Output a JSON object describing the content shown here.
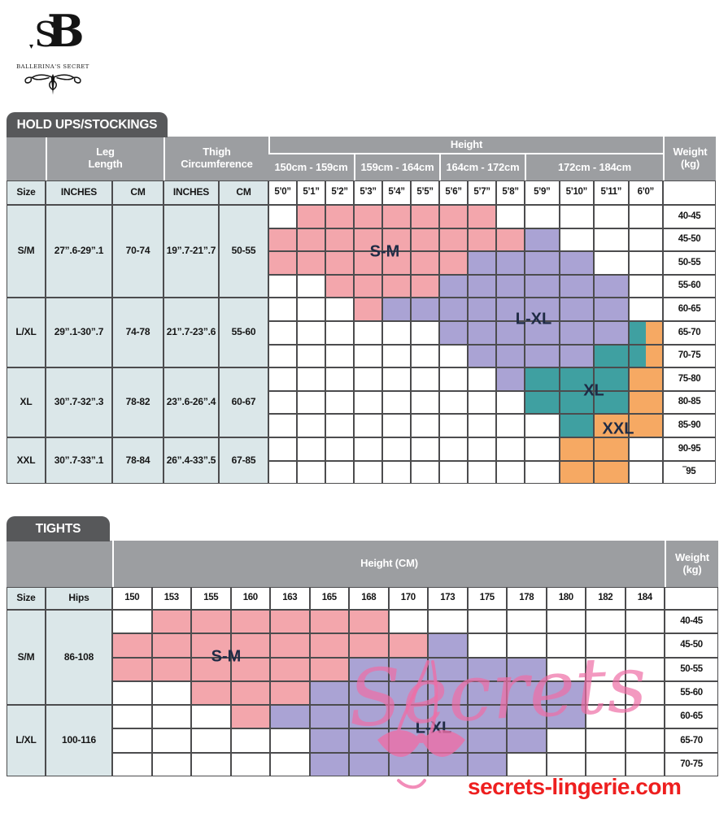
{
  "logo": {
    "monogram_primary": "B",
    "monogram_secondary": "S",
    "brand": "BALLERINA'S SECRET"
  },
  "chart_data": [
    {
      "type": "heatmap",
      "title": "HOLD UPS/STOCKINGS",
      "size_col_header": "Size",
      "measure_headers": [
        {
          "label": "Leg\nLength",
          "subcols": [
            "INCHES",
            "CM"
          ]
        },
        {
          "label": "Thigh\nCircumference",
          "subcols": [
            "INCHES",
            "CM"
          ]
        }
      ],
      "height_header": "Height",
      "weight_header": "Weight\n(kg)",
      "height_ranges": [
        {
          "label": "150cm - 159cm",
          "span": 3
        },
        {
          "label": "159cm - 164cm",
          "span": 3
        },
        {
          "label": "164cm - 172cm",
          "span": 3
        },
        {
          "label": "172cm - 184cm",
          "span": 4
        }
      ],
      "height_ticks": [
        "5’0”",
        "5’1”",
        "5’2”",
        "5’3”",
        "5’4”",
        "5’5”",
        "5’6”",
        "5’7”",
        "5’8”",
        "5’9”",
        "5’10”",
        "5’11”",
        "6’0”"
      ],
      "sizes": [
        {
          "size": "S/M",
          "leg_inches": "27”.6-29”.1",
          "leg_cm": "70-74",
          "thigh_inches": "19”.7-21”.7",
          "thigh_cm": "50-55",
          "weight_rows": 4
        },
        {
          "size": "L/XL",
          "leg_inches": "29”.1-30”.7",
          "leg_cm": "74-78",
          "thigh_inches": "21”.7-23”.6",
          "thigh_cm": "55-60",
          "weight_rows": 3
        },
        {
          "size": "XL",
          "leg_inches": "30”.7-32”.3",
          "leg_cm": "78-82",
          "thigh_inches": "23”.6-26”.4",
          "thigh_cm": "60-67",
          "weight_rows": 3
        },
        {
          "size": "XXL",
          "leg_inches": "30”.7-33”.1",
          "leg_cm": "78-84",
          "thigh_inches": "26”.4-33”.5",
          "thigh_cm": "67-85",
          "weight_rows": 2
        }
      ],
      "weights": [
        "40-45",
        "45-50",
        "50-55",
        "55-60",
        "60-65",
        "65-70",
        "70-75",
        "75-80",
        "80-85",
        "85-90",
        "90-95",
        "‾95"
      ],
      "grid": [
        ".PPPPPPP.....",
        "PPPPPPPPPL...",
        "PPPPPPPLLLL..",
        "..PPPPLLLLLL.",
        "...PLLLLLLLL.",
        "......LLLLLLX",
        ".......LLLLTX",
        "........LTTTO",
        ".........TTTO",
        "..........TOO",
        "..........OO.",
        "..........OO."
      ],
      "legend": {
        "P": "S-M",
        "L": "L-XL",
        "T": "XL",
        "O": "XXL",
        "X": "XL/XXL",
        ".": "n/a"
      },
      "region_labels": [
        {
          "text": "S-M"
        },
        {
          "text": "L-XL"
        },
        {
          "text": "XL"
        },
        {
          "text": "XXL"
        }
      ]
    },
    {
      "type": "heatmap",
      "title": "TIGHTS",
      "size_col_header": "Size",
      "hips_header": "Hips",
      "height_header": "Height (CM)",
      "weight_header": "Weight\n(kg)",
      "height_ticks": [
        "150",
        "153",
        "155",
        "160",
        "163",
        "165",
        "168",
        "170",
        "173",
        "175",
        "178",
        "180",
        "182",
        "184"
      ],
      "sizes": [
        {
          "size": "S/M",
          "hips": "86-108",
          "weight_rows": 4
        },
        {
          "size": "L/XL",
          "hips": "100-116",
          "weight_rows": 3
        }
      ],
      "weights": [
        "40-45",
        "45-50",
        "50-55",
        "55-60",
        "60-65",
        "65-70",
        "70-75"
      ],
      "grid": [
        ".PPPPPP.......",
        "PPPPPPPPL.....",
        "PPPPPPLLLLL...",
        "..PPPLLLLLLL..",
        "...PLLLLLLLL..",
        ".....LLLLLL...",
        ".....LLLLL...."
      ],
      "legend": {
        "P": "S-M",
        "L": "L-XL",
        ".": "n/a"
      },
      "region_labels": [
        {
          "text": "S-M"
        },
        {
          "text": "L-XL"
        }
      ]
    }
  ],
  "watermark": {
    "text": "Secrets"
  },
  "footer": {
    "url": "secrets-lingerie.com"
  },
  "colors": {
    "line": "#4c4c4e",
    "hdrgray": "#9c9ea1",
    "tab": "#57585a",
    "cellblue": "#dbe7e9",
    "pink": "#f3a6ac",
    "purple": "#aaa3d4",
    "teal": "#3fa0a1",
    "orange": "#f6a963",
    "urlred": "#ee1f1f",
    "wmpink": "#ef6ea6",
    "labelnavy": "#1f2b45"
  }
}
